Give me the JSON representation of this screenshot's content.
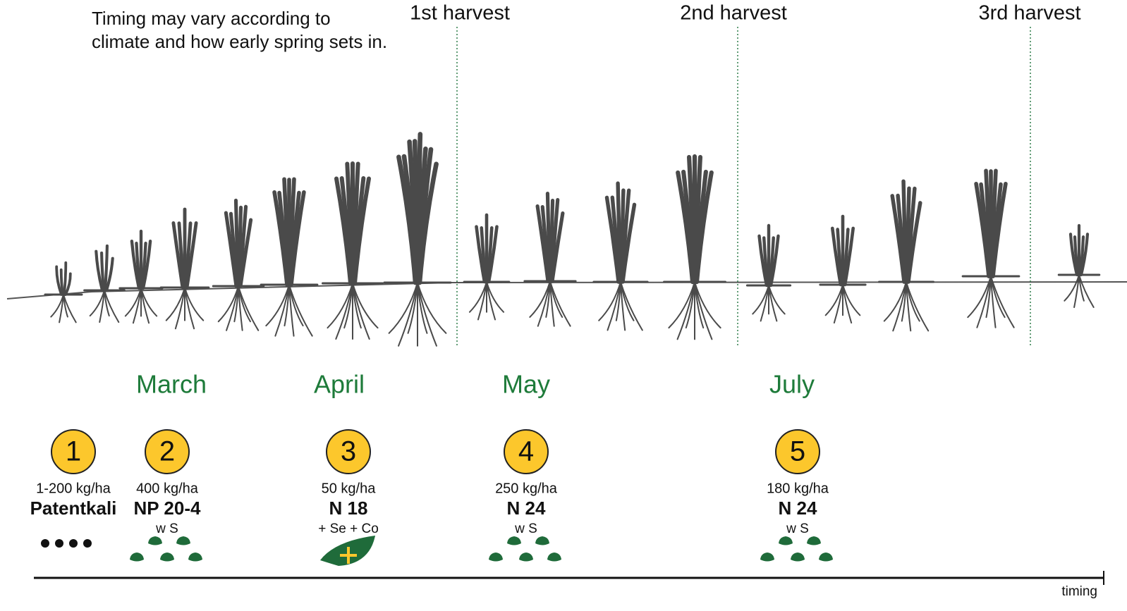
{
  "note": [
    "Timing may vary according to",
    "climate and how early spring sets in."
  ],
  "harvests": [
    "1st harvest",
    "2nd harvest",
    "3rd harvest"
  ],
  "months": [
    "March",
    "April",
    "May",
    "July"
  ],
  "applications": [
    {
      "number": "1",
      "rate": "1-200 kg/ha",
      "product": "Patentkali"
    },
    {
      "number": "2",
      "rate": "400 kg/ha",
      "product": "NP 20-4",
      "extra": "w S"
    },
    {
      "number": "3",
      "rate": "50 kg/ha",
      "product": "N 18",
      "extra": "+ Se + Co"
    },
    {
      "number": "4",
      "rate": "250 kg/ha",
      "product": "N 24",
      "extra": "w S"
    },
    {
      "number": "5",
      "rate": "180 kg/ha",
      "product": "N 24",
      "extra": "w S"
    }
  ],
  "axis_label": "timing"
}
